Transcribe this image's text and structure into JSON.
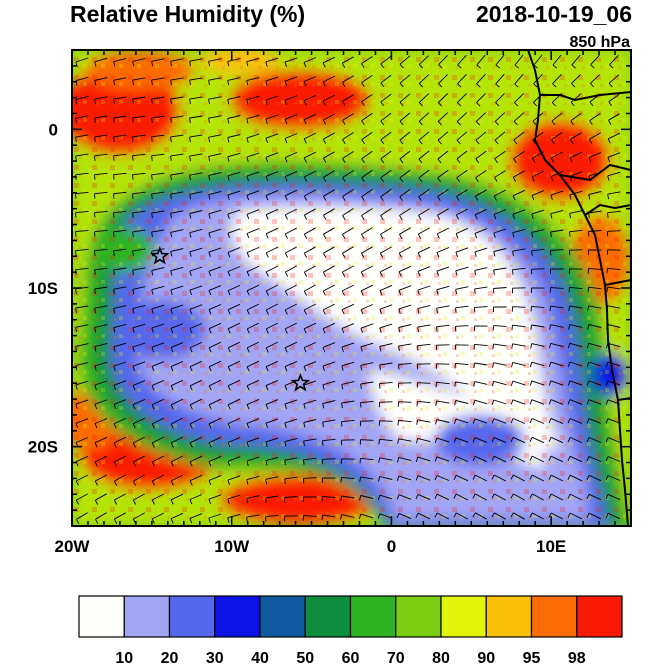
{
  "chart_data": {
    "type": "heatmap",
    "title": "Relative Humidity (%)",
    "date": "2018-10-19_06",
    "level": "850 hPa",
    "x_ticks": [
      {
        "value": -20,
        "label": "20W"
      },
      {
        "value": -10,
        "label": "10W"
      },
      {
        "value": 0,
        "label": "0"
      },
      {
        "value": 10,
        "label": "10E"
      }
    ],
    "y_ticks": [
      {
        "value": 0,
        "label": "0"
      },
      {
        "value": -10,
        "label": "10S"
      },
      {
        "value": -20,
        "label": "20S"
      }
    ],
    "xlim": [
      -20,
      15
    ],
    "ylim": [
      -25,
      5
    ],
    "overlays": [
      "wind barbs",
      "coastlines",
      "country borders"
    ],
    "markers": [
      {
        "lon": -14.5,
        "lat": -8.0,
        "symbol": "star"
      },
      {
        "lon": -5.7,
        "lat": -16.0,
        "symbol": "star"
      }
    ],
    "colorbar": {
      "labels": [
        "10",
        "20",
        "30",
        "40",
        "50",
        "60",
        "70",
        "80",
        "90",
        "95",
        "98"
      ],
      "colors": [
        "#fefefa",
        "#a2a5f4",
        "#5468ee",
        "#0c13e6",
        "#10599e",
        "#0c8e3e",
        "#2eb422",
        "#7ccd14",
        "#e3f50a",
        "#f8c107",
        "#fb6c04",
        "#fa1a06"
      ]
    }
  }
}
